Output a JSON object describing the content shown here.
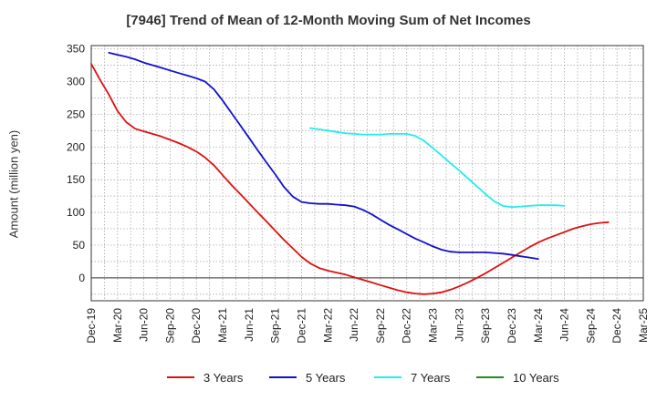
{
  "chart_data": {
    "type": "line",
    "title": "[7946]  Trend of Mean of 12-Month Moving Sum of Net Incomes",
    "ylabel": "Amount (million yen)",
    "xlabel": "",
    "ylim": [
      -35,
      355
    ],
    "yticks": [
      0,
      50,
      100,
      150,
      200,
      250,
      300,
      350
    ],
    "x_tick_labels": [
      "Dec-19",
      "Mar-20",
      "Jun-20",
      "Sep-20",
      "Dec-20",
      "Mar-21",
      "Jun-21",
      "Sep-21",
      "Dec-21",
      "Mar-22",
      "Jun-22",
      "Sep-22",
      "Dec-22",
      "Mar-23",
      "Jun-23",
      "Sep-23",
      "Dec-23",
      "Mar-24",
      "Jun-24",
      "Sep-24",
      "Dec-24",
      "Mar-25"
    ],
    "grid": true,
    "legend_position": "bottom",
    "series": [
      {
        "name": "3 Years",
        "color": "#dd1111",
        "points": [
          [
            0,
            327
          ],
          [
            0.33,
            303
          ],
          [
            0.67,
            280
          ],
          [
            1,
            255
          ],
          [
            1.33,
            238
          ],
          [
            1.67,
            228
          ],
          [
            2,
            224
          ],
          [
            2.33,
            220
          ],
          [
            2.67,
            216
          ],
          [
            3,
            211
          ],
          [
            3.33,
            206
          ],
          [
            3.67,
            200
          ],
          [
            4,
            193
          ],
          [
            4.33,
            184
          ],
          [
            4.67,
            172
          ],
          [
            5,
            157
          ],
          [
            5.33,
            142
          ],
          [
            5.67,
            128
          ],
          [
            6,
            114
          ],
          [
            6.33,
            100
          ],
          [
            6.67,
            86
          ],
          [
            7,
            72
          ],
          [
            7.33,
            58
          ],
          [
            7.67,
            45
          ],
          [
            8,
            32
          ],
          [
            8.33,
            22
          ],
          [
            8.67,
            15
          ],
          [
            9,
            11
          ],
          [
            9.33,
            8
          ],
          [
            9.67,
            5
          ],
          [
            10,
            1
          ],
          [
            10.33,
            -3
          ],
          [
            10.67,
            -7
          ],
          [
            11,
            -11
          ],
          [
            11.33,
            -15
          ],
          [
            11.67,
            -19
          ],
          [
            12,
            -22
          ],
          [
            12.33,
            -24
          ],
          [
            12.67,
            -25
          ],
          [
            13,
            -24
          ],
          [
            13.33,
            -22
          ],
          [
            13.67,
            -18
          ],
          [
            14,
            -13
          ],
          [
            14.33,
            -7
          ],
          [
            14.67,
            0
          ],
          [
            15,
            7
          ],
          [
            15.33,
            15
          ],
          [
            15.67,
            23
          ],
          [
            16,
            31
          ],
          [
            16.33,
            39
          ],
          [
            16.67,
            47
          ],
          [
            17,
            54
          ],
          [
            17.33,
            60
          ],
          [
            17.67,
            65
          ],
          [
            18,
            70
          ],
          [
            18.33,
            75
          ],
          [
            18.67,
            79
          ],
          [
            19,
            82
          ],
          [
            19.33,
            84
          ],
          [
            19.67,
            85
          ]
        ]
      },
      {
        "name": "5 Years",
        "color": "#1111cc",
        "points": [
          [
            0.67,
            344
          ],
          [
            1,
            341
          ],
          [
            1.33,
            338
          ],
          [
            1.67,
            334
          ],
          [
            2,
            329
          ],
          [
            2.33,
            325
          ],
          [
            2.67,
            321
          ],
          [
            3,
            317
          ],
          [
            3.33,
            313
          ],
          [
            3.67,
            309
          ],
          [
            4,
            305
          ],
          [
            4.33,
            300
          ],
          [
            4.67,
            288
          ],
          [
            5,
            271
          ],
          [
            5.33,
            252
          ],
          [
            5.67,
            233
          ],
          [
            6,
            214
          ],
          [
            6.33,
            195
          ],
          [
            6.67,
            176
          ],
          [
            7,
            158
          ],
          [
            7.33,
            139
          ],
          [
            7.67,
            124
          ],
          [
            8,
            116
          ],
          [
            8.33,
            114
          ],
          [
            8.67,
            113
          ],
          [
            9,
            113
          ],
          [
            9.33,
            112
          ],
          [
            9.67,
            111
          ],
          [
            10,
            109
          ],
          [
            10.33,
            104
          ],
          [
            10.67,
            97
          ],
          [
            11,
            89
          ],
          [
            11.33,
            81
          ],
          [
            11.67,
            74
          ],
          [
            12,
            67
          ],
          [
            12.33,
            60
          ],
          [
            12.67,
            54
          ],
          [
            13,
            48
          ],
          [
            13.33,
            43
          ],
          [
            13.67,
            40
          ],
          [
            14,
            39
          ],
          [
            14.33,
            39
          ],
          [
            14.67,
            39
          ],
          [
            15,
            39
          ],
          [
            15.33,
            38
          ],
          [
            15.67,
            37
          ],
          [
            16,
            35
          ],
          [
            16.33,
            33
          ],
          [
            16.67,
            31
          ],
          [
            17,
            29
          ]
        ]
      },
      {
        "name": "7 Years",
        "color": "#22eeee",
        "points": [
          [
            8.33,
            229
          ],
          [
            8.67,
            227
          ],
          [
            9,
            225
          ],
          [
            9.33,
            223
          ],
          [
            9.67,
            221
          ],
          [
            10,
            220
          ],
          [
            10.33,
            219
          ],
          [
            10.67,
            219
          ],
          [
            11,
            219
          ],
          [
            11.33,
            220
          ],
          [
            11.67,
            220
          ],
          [
            12,
            220
          ],
          [
            12.33,
            217
          ],
          [
            12.67,
            209
          ],
          [
            13,
            198
          ],
          [
            13.33,
            187
          ],
          [
            13.67,
            175
          ],
          [
            14,
            164
          ],
          [
            14.33,
            152
          ],
          [
            14.67,
            140
          ],
          [
            15,
            128
          ],
          [
            15.33,
            117
          ],
          [
            15.67,
            110
          ],
          [
            16,
            108
          ],
          [
            16.33,
            109
          ],
          [
            16.67,
            110
          ],
          [
            17,
            111
          ],
          [
            17.33,
            111
          ],
          [
            17.67,
            111
          ],
          [
            18,
            110
          ]
        ]
      },
      {
        "name": "10 Years",
        "color": "#228b22",
        "points": []
      }
    ]
  }
}
